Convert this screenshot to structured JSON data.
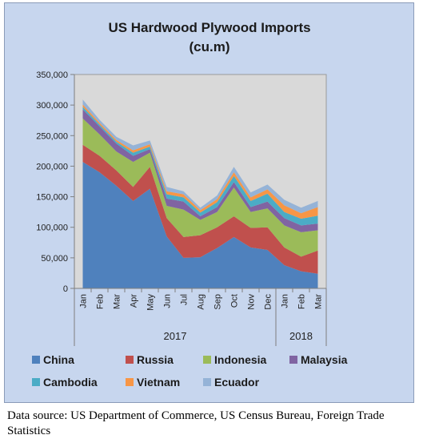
{
  "chart_data": {
    "type": "area",
    "stacked": true,
    "title": "US Hardwood Plywood Imports",
    "subtitle": "(cu.m)",
    "categories": [
      "Jan",
      "Feb",
      "Mar",
      "Apr",
      "May",
      "Jun",
      "Jul",
      "Aug",
      "Sep",
      "Oct",
      "Nov",
      "Dec",
      "Jan",
      "Feb",
      "Mar"
    ],
    "year_groups": [
      {
        "label": "2017",
        "count": 12
      },
      {
        "label": "2018",
        "count": 3
      }
    ],
    "ylim": [
      0,
      350000
    ],
    "yticks": [
      "0",
      "50,000",
      "100,000",
      "150,000",
      "200,000",
      "250,000",
      "300,000",
      "350,000"
    ],
    "ytick_values": [
      0,
      50000,
      100000,
      150000,
      200000,
      250000,
      300000,
      350000
    ],
    "grid": false,
    "plot_background": "#d9d9d9",
    "legend_position": "bottom",
    "series": [
      {
        "name": "China",
        "color": "#4f81bd",
        "values": [
          207000,
          190000,
          168000,
          143000,
          163000,
          85000,
          50000,
          51000,
          66000,
          84000,
          67000,
          63000,
          38000,
          28000,
          24000
        ]
      },
      {
        "name": "Russia",
        "color": "#c0504d",
        "values": [
          28000,
          27000,
          25000,
          23000,
          36000,
          30000,
          34000,
          36000,
          34000,
          34000,
          32000,
          37000,
          29000,
          24000,
          38000
        ]
      },
      {
        "name": "Indonesia",
        "color": "#9bbb59",
        "values": [
          43000,
          35000,
          31000,
          41000,
          23000,
          20000,
          45000,
          25000,
          25000,
          47000,
          26000,
          31000,
          36000,
          40000,
          33000
        ]
      },
      {
        "name": "Malaysia",
        "color": "#8064a2",
        "values": [
          15000,
          13000,
          13000,
          10000,
          6000,
          12000,
          13000,
          6000,
          8000,
          9000,
          8000,
          11000,
          12000,
          11000,
          11000
        ]
      },
      {
        "name": "Cambodia",
        "color": "#4bacc6",
        "values": [
          4000,
          3000,
          3000,
          5000,
          4000,
          7000,
          7000,
          6000,
          8000,
          10000,
          10000,
          13000,
          10000,
          11000,
          13000
        ]
      },
      {
        "name": "Vietnam",
        "color": "#f79646",
        "values": [
          4000,
          3000,
          3000,
          4000,
          4000,
          5000,
          5000,
          4000,
          5000,
          6000,
          6000,
          7000,
          11000,
          9000,
          14000
        ]
      },
      {
        "name": "Ecuador",
        "color": "#95b3d7",
        "values": [
          8000,
          5000,
          5000,
          8000,
          6000,
          7000,
          5000,
          4000,
          6000,
          9000,
          8000,
          8000,
          9000,
          9000,
          10000
        ]
      }
    ]
  },
  "source_note": "Data source: US Department of Commerce, US Census Bureau, Foreign Trade Statistics"
}
